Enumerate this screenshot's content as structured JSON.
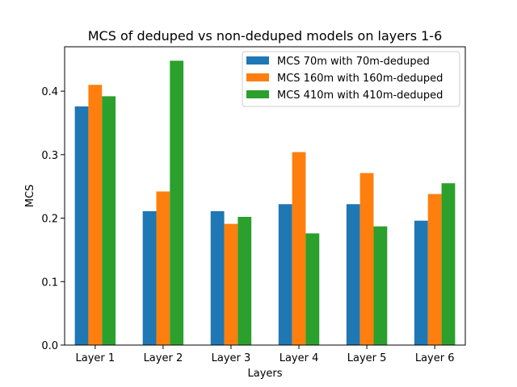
{
  "chart_data": {
    "type": "bar",
    "title": "MCS of deduped vs non-deduped models on layers 1-6",
    "xlabel": "Layers",
    "ylabel": "MCS",
    "categories": [
      "Layer 1",
      "Layer 2",
      "Layer 3",
      "Layer 4",
      "Layer 5",
      "Layer 6"
    ],
    "ylim": [
      0,
      0.47
    ],
    "yticks": [
      0.0,
      0.1,
      0.2,
      0.3,
      0.4
    ],
    "ytick_labels": [
      "0.0",
      "0.1",
      "0.2",
      "0.3",
      "0.4"
    ],
    "grid": false,
    "legend_position": "top-right",
    "series": [
      {
        "name": "MCS 70m with 70m-deduped",
        "color": "#1f77b4",
        "values": [
          0.376,
          0.211,
          0.211,
          0.222,
          0.222,
          0.196
        ]
      },
      {
        "name": "MCS 160m with 160m-deduped",
        "color": "#ff7f0e",
        "values": [
          0.41,
          0.242,
          0.191,
          0.304,
          0.271,
          0.238
        ]
      },
      {
        "name": "MCS 410m with 410m-deduped",
        "color": "#2ca02c",
        "values": [
          0.392,
          0.448,
          0.202,
          0.176,
          0.187,
          0.255
        ]
      }
    ]
  }
}
